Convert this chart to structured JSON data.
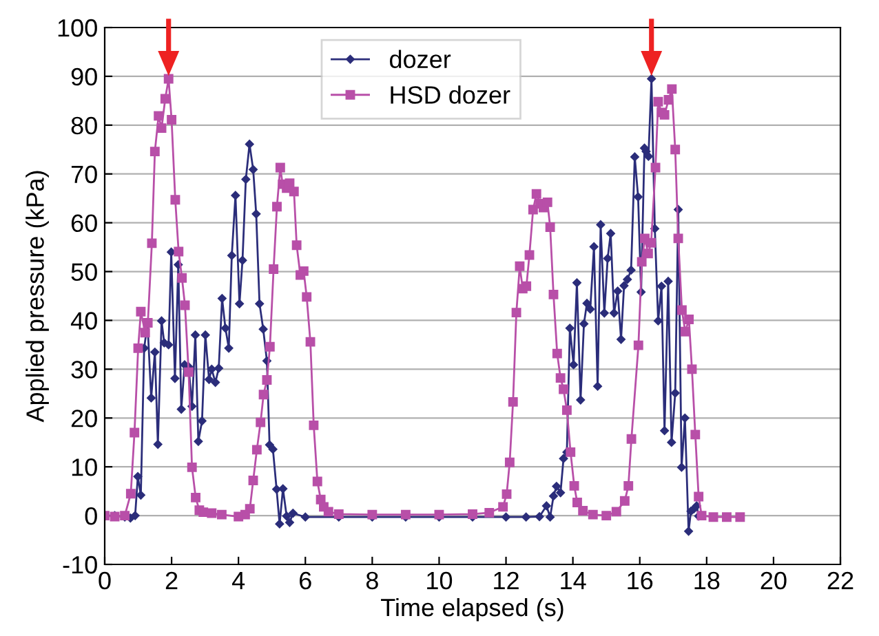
{
  "chart_data": {
    "type": "line",
    "xlabel": "Time elapsed (s)",
    "ylabel": "Applied pressure (kPa)",
    "xlim": [
      0,
      22
    ],
    "xticks": [
      0,
      2,
      4,
      6,
      8,
      10,
      12,
      14,
      16,
      18,
      20,
      22
    ],
    "ylim": [
      -10,
      100
    ],
    "yticks": [
      -10,
      0,
      10,
      20,
      30,
      40,
      50,
      60,
      70,
      80,
      90,
      100
    ],
    "grid": "y",
    "legend": "top center",
    "series": [
      {
        "name": "dozer",
        "color": "#2b2d7a",
        "marker": "diamond",
        "x": [
          0,
          0.3,
          0.6,
          0.77,
          0.91,
          0.99,
          1.08,
          1.18,
          1.28,
          1.39,
          1.5,
          1.59,
          1.7,
          1.78,
          1.91,
          1.99,
          2.1,
          2.2,
          2.29,
          2.39,
          2.51,
          2.61,
          2.71,
          2.8,
          2.91,
          3.01,
          3.12,
          3.2,
          3.31,
          3.41,
          3.51,
          3.61,
          3.71,
          3.8,
          3.91,
          4.03,
          4.12,
          4.22,
          4.33,
          4.44,
          4.53,
          4.63,
          4.74,
          4.85,
          4.93,
          5.03,
          5.14,
          5.23,
          5.33,
          5.44,
          5.53,
          5.63,
          6.0,
          7.0,
          8.0,
          9.0,
          10.0,
          11.0,
          12.0,
          12.6,
          13.0,
          13.21,
          13.32,
          13.42,
          13.51,
          13.63,
          13.72,
          13.82,
          13.91,
          14.02,
          14.12,
          14.23,
          14.33,
          14.42,
          14.52,
          14.63,
          14.74,
          14.83,
          14.94,
          15.04,
          15.13,
          15.23,
          15.34,
          15.44,
          15.53,
          15.63,
          15.74,
          15.85,
          15.95,
          16.04,
          16.14,
          16.19,
          16.26,
          16.35,
          16.45,
          16.55,
          16.65,
          16.74,
          16.85,
          16.95,
          17.06,
          17.15,
          17.25,
          17.35,
          17.46,
          17.53,
          17.62,
          17.7,
          17.76
        ],
        "values": [
          0,
          0,
          -0.3,
          -0.5,
          0,
          8,
          4.2,
          34.3,
          39.4,
          24.1,
          33.5,
          14.6,
          39.9,
          35.4,
          35,
          54,
          28.1,
          51.4,
          21.8,
          30.9,
          30.5,
          22.4,
          37,
          15.2,
          19.4,
          37,
          27.9,
          30,
          27.3,
          30.2,
          44.5,
          38.4,
          34.3,
          53.3,
          65.6,
          43.4,
          52.3,
          68.9,
          76.1,
          70.9,
          61.8,
          43.4,
          38.2,
          31.7,
          14.5,
          13.6,
          5.4,
          -1.7,
          5.5,
          -0.1,
          -1.4,
          0.5,
          -0.3,
          -0.3,
          -0.3,
          -0.3,
          -0.3,
          -0.3,
          -0.3,
          -0.3,
          -0.2,
          2,
          -0.3,
          4,
          6,
          4.7,
          11.7,
          13,
          38.4,
          30.9,
          47.7,
          23.7,
          39.3,
          43.5,
          42.3,
          55.1,
          26.5,
          59.6,
          41.5,
          52.7,
          57.8,
          41.5,
          46,
          36.1,
          47.1,
          48.4,
          50.3,
          73.5,
          65.3,
          45.8,
          75.3,
          74.6,
          73.6,
          89.5,
          58.8,
          39.9,
          47,
          17.4,
          48,
          15,
          25.1,
          62.7,
          9.9,
          20,
          -3.2,
          0.9,
          1.4,
          2,
          -0.1
        ]
      },
      {
        "name": "HSD dozer",
        "color": "#b84fa8",
        "marker": "square",
        "x": [
          0,
          0.3,
          0.6,
          0.78,
          0.89,
          1.0,
          1.08,
          1.21,
          1.29,
          1.41,
          1.5,
          1.61,
          1.7,
          1.81,
          1.91,
          2.0,
          2.11,
          2.21,
          2.31,
          2.4,
          2.51,
          2.61,
          2.72,
          2.83,
          2.95,
          3.2,
          3.5,
          4.0,
          4.2,
          4.34,
          4.44,
          4.55,
          4.66,
          4.75,
          4.85,
          4.94,
          5.05,
          5.15,
          5.25,
          5.32,
          5.44,
          5.53,
          5.66,
          5.74,
          5.85,
          5.95,
          6.04,
          6.15,
          6.25,
          6.36,
          6.46,
          6.55,
          6.69,
          7.0,
          8.0,
          9.0,
          10.0,
          11.0,
          11.5,
          11.91,
          12.02,
          12.11,
          12.21,
          12.31,
          12.41,
          12.5,
          12.61,
          12.7,
          12.81,
          12.91,
          13.02,
          13.12,
          13.24,
          13.32,
          13.42,
          13.53,
          13.63,
          13.72,
          13.82,
          13.93,
          14.04,
          14.13,
          14.3,
          14.6,
          15.0,
          15.3,
          15.55,
          15.66,
          15.75,
          15.96,
          16.06,
          16.15,
          16.25,
          16.34,
          16.47,
          16.55,
          16.65,
          16.74,
          16.86,
          16.96,
          17.06,
          17.15,
          17.26,
          17.36,
          17.47,
          17.56,
          17.66,
          17.76,
          17.85,
          18.2,
          18.6,
          19.0
        ],
        "values": [
          0,
          -0.2,
          0,
          4.5,
          17,
          34.3,
          41.8,
          37.5,
          39.5,
          55.8,
          74.6,
          81.9,
          79.4,
          85.4,
          89.5,
          81.1,
          64.7,
          54.1,
          48.7,
          43.1,
          29.4,
          9.9,
          3.7,
          1.1,
          0.7,
          0.5,
          0.2,
          -0.2,
          0.2,
          1.4,
          7.2,
          13.5,
          19.1,
          24.8,
          27.8,
          34.6,
          50.5,
          63.3,
          71.3,
          67.9,
          67.1,
          68.1,
          66.4,
          55.4,
          49.3,
          50.1,
          44.8,
          35.6,
          18.5,
          7,
          3.3,
          1.8,
          0.8,
          0.3,
          0.2,
          0.2,
          0.2,
          0.3,
          0.6,
          1.8,
          4.4,
          10.9,
          23.3,
          41.6,
          51.1,
          46.5,
          47,
          53.4,
          62.7,
          65.9,
          63.9,
          63.1,
          64.2,
          59.1,
          45.3,
          33.2,
          28.2,
          25.9,
          21.6,
          13,
          6.1,
          2.7,
          1,
          0.2,
          0,
          0.8,
          3,
          6.1,
          15.7,
          34.9,
          52,
          56.8,
          53.7,
          55.9,
          71.3,
          84.8,
          82.6,
          82.1,
          85.2,
          87.4,
          75,
          56.8,
          42.1,
          37.7,
          40.2,
          30,
          16.6,
          3.9,
          0,
          -0.3,
          -0.3,
          -0.3
        ]
      }
    ]
  }
}
